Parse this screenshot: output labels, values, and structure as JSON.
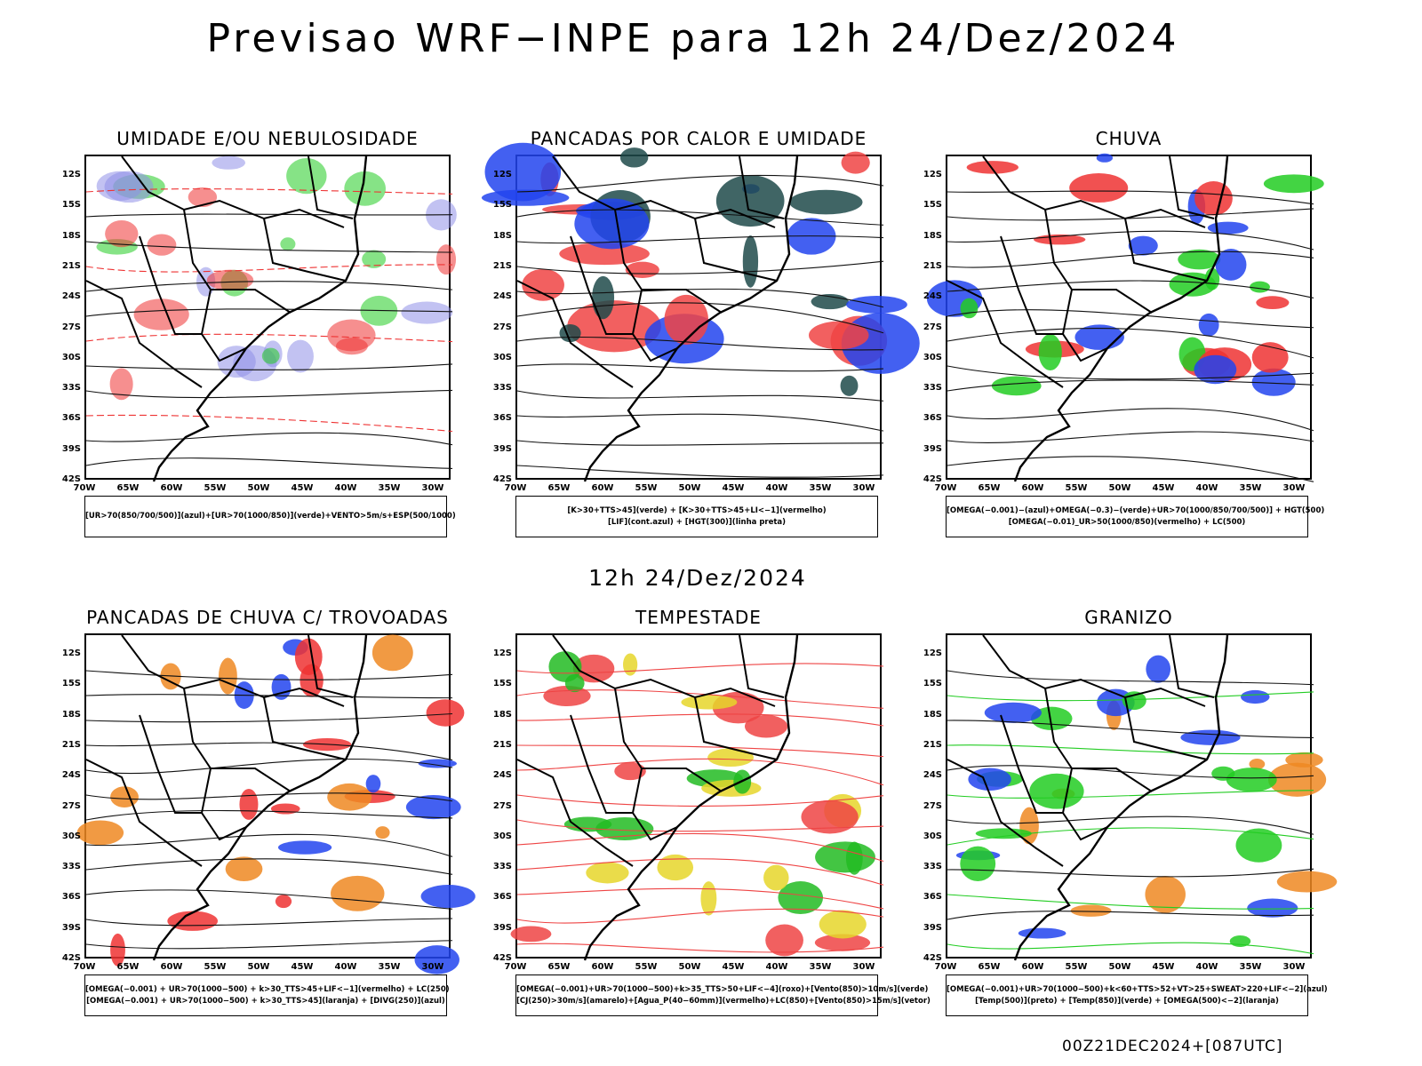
{
  "title": "Previsao WRF−INPE  para 12h 24/Dez/2024",
  "subtitle": "12h 24/Dez/2024",
  "footer": "00Z21DEC2024+[087UTC]",
  "lat_ticks": [
    "12S",
    "15S",
    "18S",
    "21S",
    "24S",
    "27S",
    "30S",
    "33S",
    "36S",
    "39S",
    "42S"
  ],
  "lon_ticks": [
    "70W",
    "65W",
    "60W",
    "55W",
    "50W",
    "45W",
    "40W",
    "35W",
    "30W"
  ],
  "panels": [
    {
      "title": "UMIDADE E/OU NEBULOSIDADE",
      "legend": [
        "[UR>70(850/700/500)](azul)+[UR>70(1000/850)](verde)+VENTO>5m/s+ESP(500/1000)"
      ],
      "colors": [
        "#8f8fe8",
        "#22cc22",
        "#ee3333"
      ]
    },
    {
      "title": "PANCADAS POR CALOR E UMIDADE",
      "legend": [
        "[K>30+TTS>45](verde) + [K>30+TTS>45+LI<−1](vermelho)",
        "[LIF](cont.azul) + [HGT(300)](linha preta)"
      ],
      "colors": [
        "#f04444",
        "#1e4a4a",
        "#2244ee"
      ]
    },
    {
      "title": "CHUVA",
      "legend": [
        "[OMEGA(−0.001)−(azul)+OMEGA(−0.3)−(verde)+UR>70(1000/850/700/500)] + HGT(500)",
        "[OMEGA(−0.01)_UR>50(1000/850)(vermelho) + LC(500)"
      ],
      "colors": [
        "#2244ee",
        "#22cc22",
        "#ee3333"
      ]
    },
    {
      "title": "PANCADAS DE CHUVA C/ TROVOADAS",
      "legend": [
        "[OMEGA(−0.001) + UR>70(1000−500) + k>30_TTS>45+LIF<−1](vermelho) + LC(250)",
        "[OMEGA(−0.001) + UR>70(1000−500) + k>30_TTS>45](laranja) + [DIVG(250)](azul)"
      ],
      "colors": [
        "#ee3333",
        "#ee8822",
        "#2244ee"
      ]
    },
    {
      "title": "TEMPESTADE",
      "legend": [
        "[OMEGA(−0.001)+UR>70(1000−500)+k>35_TTS>50+LIF<−4](roxo)+[Vento(850)>10m/s](verde)",
        "[CJ(250)>30m/s](amarelo)+[Agua_P(40−60mm)](vermelho)+LC(850)+[Vento(850)>15m/s](vetor)"
      ],
      "colors": [
        "#e6d62a",
        "#22bb22",
        "#ee4444"
      ]
    },
    {
      "title": "GRANIZO",
      "legend": [
        "[OMEGA(−0.001)+UR>70(1000−500)+k<60+TTS>52+VT>25+SWEAT>220+LIF<−2](azul)",
        "[Temp(500)](preto) + [Temp(850)](verde) + [OMEGA(500)<−2](laranja)"
      ],
      "colors": [
        "#22cc22",
        "#ee8822",
        "#2244ee"
      ]
    }
  ]
}
